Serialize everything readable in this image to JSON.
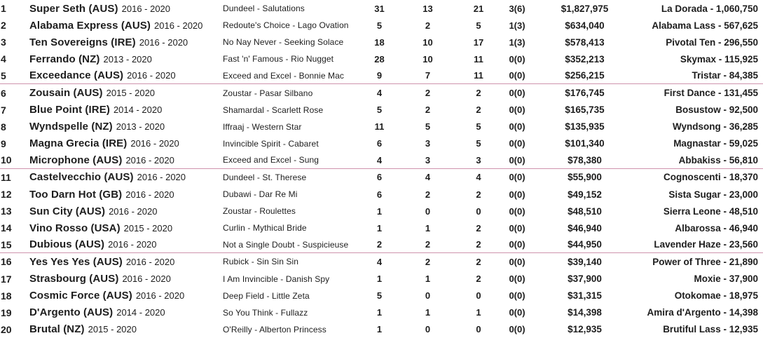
{
  "colors": {
    "background": "#ffffff",
    "text": "#1d1d1d",
    "group_divider_pink": "#cf93ad"
  },
  "table": {
    "group_divider_after_ranks": [
      5,
      10,
      15
    ],
    "rows": [
      {
        "rank": "1",
        "name": "Super Seth (AUS)",
        "years": "2016 - 2020",
        "pedigree": "Dundeel - Salutations",
        "num1": "31",
        "num2": "13",
        "num3": "21",
        "stakes": "3(6)",
        "prizemoney": "$1,827,975",
        "top_performer": "La Dorada - 1,060,750"
      },
      {
        "rank": "2",
        "name": "Alabama Express (AUS)",
        "years": "2016 - 2020",
        "pedigree": "Redoute's Choice - Lago Ovation",
        "num1": "5",
        "num2": "2",
        "num3": "5",
        "stakes": "1(3)",
        "prizemoney": "$634,040",
        "top_performer": "Alabama Lass - 567,625"
      },
      {
        "rank": "3",
        "name": "Ten Sovereigns (IRE)",
        "years": "2016 - 2020",
        "pedigree": "No Nay Never - Seeking Solace",
        "num1": "18",
        "num2": "10",
        "num3": "17",
        "stakes": "1(3)",
        "prizemoney": "$578,413",
        "top_performer": "Pivotal Ten - 296,550"
      },
      {
        "rank": "4",
        "name": "Ferrando (NZ)",
        "years": "2013 - 2020",
        "pedigree": "Fast 'n' Famous - Rio Nugget",
        "num1": "28",
        "num2": "10",
        "num3": "11",
        "stakes": "0(0)",
        "prizemoney": "$352,213",
        "top_performer": "Skymax - 115,925"
      },
      {
        "rank": "5",
        "name": "Exceedance (AUS)",
        "years": "2016 - 2020",
        "pedigree": "Exceed and Excel - Bonnie Mac",
        "num1": "9",
        "num2": "7",
        "num3": "11",
        "stakes": "0(0)",
        "prizemoney": "$256,215",
        "top_performer": "Tristar - 84,385"
      },
      {
        "rank": "6",
        "name": "Zousain (AUS)",
        "years": "2015 - 2020",
        "pedigree": "Zoustar - Pasar Silbano",
        "num1": "4",
        "num2": "2",
        "num3": "2",
        "stakes": "0(0)",
        "prizemoney": "$176,745",
        "top_performer": "First Dance - 131,455"
      },
      {
        "rank": "7",
        "name": "Blue Point (IRE)",
        "years": "2014 - 2020",
        "pedigree": "Shamardal - Scarlett Rose",
        "num1": "5",
        "num2": "2",
        "num3": "2",
        "stakes": "0(0)",
        "prizemoney": "$165,735",
        "top_performer": "Bosustow - 92,500"
      },
      {
        "rank": "8",
        "name": "Wyndspelle (NZ)",
        "years": "2013 - 2020",
        "pedigree": "Iffraaj - Western Star",
        "num1": "11",
        "num2": "5",
        "num3": "5",
        "stakes": "0(0)",
        "prizemoney": "$135,935",
        "top_performer": "Wyndsong - 36,285"
      },
      {
        "rank": "9",
        "name": "Magna Grecia (IRE)",
        "years": "2016 - 2020",
        "pedigree": "Invincible Spirit - Cabaret",
        "num1": "6",
        "num2": "3",
        "num3": "5",
        "stakes": "0(0)",
        "prizemoney": "$101,340",
        "top_performer": "Magnastar - 59,025"
      },
      {
        "rank": "10",
        "name": "Microphone (AUS)",
        "years": "2016 - 2020",
        "pedigree": "Exceed and Excel - Sung",
        "num1": "4",
        "num2": "3",
        "num3": "3",
        "stakes": "0(0)",
        "prizemoney": "$78,380",
        "top_performer": "Abbakiss - 56,810"
      },
      {
        "rank": "11",
        "name": "Castelvecchio (AUS)",
        "years": "2016 - 2020",
        "pedigree": "Dundeel - St. Therese",
        "num1": "6",
        "num2": "4",
        "num3": "4",
        "stakes": "0(0)",
        "prizemoney": "$55,900",
        "top_performer": "Cognoscenti - 18,370"
      },
      {
        "rank": "12",
        "name": "Too Darn Hot (GB)",
        "years": "2016 - 2020",
        "pedigree": "Dubawi - Dar Re Mi",
        "num1": "6",
        "num2": "2",
        "num3": "2",
        "stakes": "0(0)",
        "prizemoney": "$49,152",
        "top_performer": "Sista Sugar - 23,000"
      },
      {
        "rank": "13",
        "name": "Sun City (AUS)",
        "years": "2016 - 2020",
        "pedigree": "Zoustar - Roulettes",
        "num1": "1",
        "num2": "0",
        "num3": "0",
        "stakes": "0(0)",
        "prizemoney": "$48,510",
        "top_performer": "Sierra Leone - 48,510"
      },
      {
        "rank": "14",
        "name": "Vino Rosso (USA)",
        "years": "2015 - 2020",
        "pedigree": "Curlin - Mythical Bride",
        "num1": "1",
        "num2": "1",
        "num3": "2",
        "stakes": "0(0)",
        "prizemoney": "$46,940",
        "top_performer": "Albarossa - 46,940"
      },
      {
        "rank": "15",
        "name": "Dubious (AUS)",
        "years": "2016 - 2020",
        "pedigree": "Not a Single Doubt - Suspicieuse",
        "num1": "2",
        "num2": "2",
        "num3": "2",
        "stakes": "0(0)",
        "prizemoney": "$44,950",
        "top_performer": "Lavender Haze - 23,560"
      },
      {
        "rank": "16",
        "name": "Yes Yes Yes (AUS)",
        "years": "2016 - 2020",
        "pedigree": "Rubick - Sin Sin Sin",
        "num1": "4",
        "num2": "2",
        "num3": "2",
        "stakes": "0(0)",
        "prizemoney": "$39,140",
        "top_performer": "Power of Three - 21,890"
      },
      {
        "rank": "17",
        "name": "Strasbourg (AUS)",
        "years": "2016 - 2020",
        "pedigree": "I Am Invincible - Danish Spy",
        "num1": "1",
        "num2": "1",
        "num3": "2",
        "stakes": "0(0)",
        "prizemoney": "$37,900",
        "top_performer": "Moxie - 37,900"
      },
      {
        "rank": "18",
        "name": "Cosmic Force (AUS)",
        "years": "2016 - 2020",
        "pedigree": "Deep Field - Little Zeta",
        "num1": "5",
        "num2": "0",
        "num3": "0",
        "stakes": "0(0)",
        "prizemoney": "$31,315",
        "top_performer": "Otokomae - 18,975"
      },
      {
        "rank": "19",
        "name": "D'Argento (AUS)",
        "years": "2014 - 2020",
        "pedigree": "So You Think - Fullazz",
        "num1": "1",
        "num2": "1",
        "num3": "1",
        "stakes": "0(0)",
        "prizemoney": "$14,398",
        "top_performer": "Amira d'Argento - 14,398"
      },
      {
        "rank": "20",
        "name": "Brutal (NZ)",
        "years": "2015 - 2020",
        "pedigree": "O'Reilly - Alberton Princess",
        "num1": "1",
        "num2": "0",
        "num3": "0",
        "stakes": "0(0)",
        "prizemoney": "$12,935",
        "top_performer": "Brutiful Lass - 12,935"
      }
    ]
  }
}
